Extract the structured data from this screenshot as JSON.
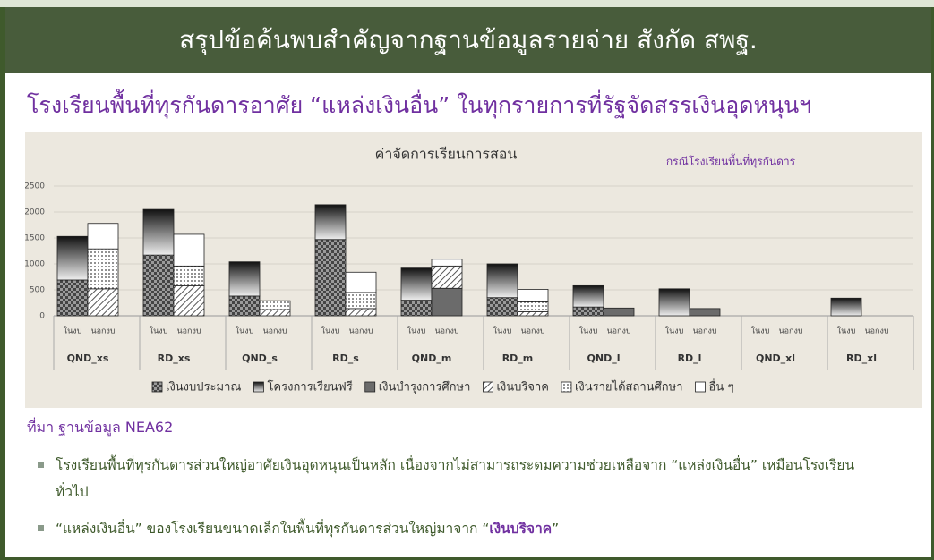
{
  "header": {
    "title": "สรุปข้อค้นพบสำคัญจากฐานข้อมูลรายจ่าย สังกัด สพฐ."
  },
  "subtitle": "โรงเรียนพื้นที่ทุรกันดารอาศัย “แหล่งเงินอื่น” ในทุกรายการที่รัฐจัดสรรเงินอุดหนุนฯ",
  "chart_data": {
    "type": "stacked_bar",
    "title": "ค่าจัดการเรียนการสอน",
    "annotation": "กรณีโรงเรียนพื้นที่ทุรกันดาร",
    "categories": [
      "ในงบ",
      "นอกงบ",
      "ในงบ",
      "นอกงบ",
      "ในงบ",
      "นอกงบ",
      "ในงบ",
      "นอกงบ",
      "ในงบ",
      "นอกงบ",
      "ในงบ",
      "นอกงบ",
      "ในงบ",
      "นอกงบ",
      "ในงบ",
      "นอกงบ",
      "ในงบ",
      "นอกงบ",
      "ในงบ",
      "นอกงบ"
    ],
    "groups": [
      "QND_xs",
      "RD_xs",
      "QND_s",
      "RD_s",
      "QND_m",
      "RD_m",
      "QND_l",
      "RD_l",
      "QND_xl",
      "RD_xl"
    ],
    "ylim": [
      0,
      2500
    ],
    "yticks": [
      0,
      500,
      1000,
      1500,
      2000,
      2500
    ],
    "grid": true,
    "series": [
      {
        "name": "เงินงบประมาณ",
        "color": "#555555",
        "pattern": "checker",
        "values": [
          690,
          0,
          1170,
          0,
          380,
          0,
          1470,
          0,
          300,
          0,
          350,
          0,
          170,
          0,
          0,
          0,
          0,
          0,
          0,
          0
        ]
      },
      {
        "name": "โครงการเรียนฟรี",
        "color": "#222222",
        "pattern": "gradient",
        "values": [
          840,
          0,
          880,
          0,
          660,
          0,
          670,
          0,
          620,
          0,
          650,
          0,
          410,
          0,
          520,
          0,
          0,
          0,
          340,
          0
        ]
      },
      {
        "name": "เงินบำรุงการศึกษา",
        "color": "#6b6b6b",
        "pattern": "solid",
        "values": [
          0,
          0,
          0,
          0,
          0,
          0,
          0,
          0,
          0,
          530,
          0,
          0,
          0,
          150,
          0,
          140,
          0,
          0,
          0,
          0
        ]
      },
      {
        "name": "เงินบริจาค",
        "color": "#555555",
        "pattern": "hatch",
        "values": [
          0,
          520,
          0,
          580,
          0,
          120,
          0,
          140,
          0,
          430,
          0,
          80,
          0,
          0,
          0,
          0,
          0,
          0,
          0,
          0
        ]
      },
      {
        "name": "เงินรายได้สถานศึกษา",
        "color": "#555555",
        "pattern": "dots",
        "values": [
          0,
          770,
          0,
          380,
          0,
          170,
          0,
          310,
          0,
          0,
          0,
          190,
          0,
          0,
          0,
          0,
          0,
          0,
          0,
          0
        ]
      },
      {
        "name": "อื่น ๆ",
        "color": "#ffffff",
        "pattern": "solid",
        "values": [
          0,
          490,
          0,
          610,
          0,
          0,
          0,
          390,
          0,
          130,
          0,
          240,
          0,
          0,
          0,
          0,
          0,
          0,
          0,
          0
        ]
      }
    ]
  },
  "source": "ที่มา ฐานข้อมูล NEA62",
  "bullets": [
    {
      "text": "โรงเรียนพื้นที่ทุรกันดารส่วนใหญ่อาศัยเงินอุดหนุนเป็นหลัก เนื่องจากไม่สามารถระดมความช่วยเหลือจาก “แหล่งเงินอื่น” เหมือนโรงเรียนทั่วไป"
    },
    {
      "text": "“แหล่งเงินอื่น” ของโรงเรียนขนาดเล็กในพื้นที่ทุรกันดารส่วนใหญ่มาจาก “",
      "emphasis": "เงินบริจาค",
      "tail": "”"
    }
  ]
}
